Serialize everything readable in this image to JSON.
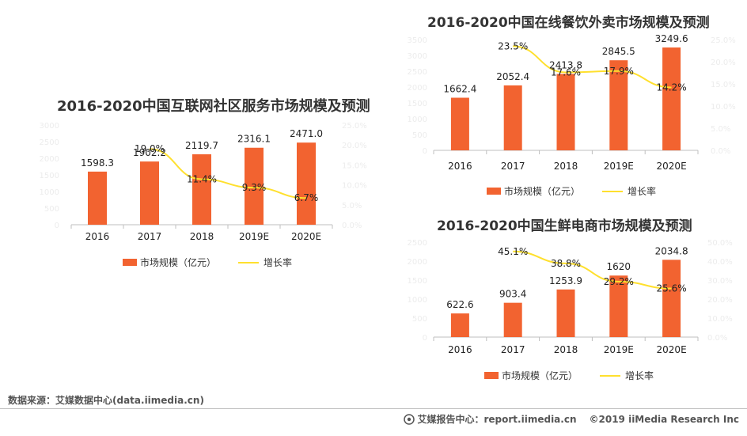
{
  "footer": {
    "source": "数据来源：艾媒数据中心(data.iimedia.cn)",
    "site": "艾媒报告中心：report.iimedia.cn",
    "copyright": "©2019  iiMedia Research  Inc"
  },
  "legend": {
    "bar_label": "市场规模（亿元）",
    "line_label": "增长率"
  },
  "colors": {
    "bar": "#F26330",
    "line": "#FFE02E",
    "axis": "#bfbfbf"
  },
  "chart_data": [
    {
      "id": "community",
      "type": "bar",
      "title": "2016-2020中国互联网社区服务市场规模及预测",
      "categories": [
        "2016",
        "2017",
        "2018",
        "2019E",
        "2020E"
      ],
      "values": [
        1598.3,
        1902.2,
        2119.7,
        2316.1,
        2471.0
      ],
      "value_labels": [
        "1598.3",
        "1902.2",
        "2119.7",
        "2316.1",
        "2471.0"
      ],
      "growth": [
        null,
        19.0,
        11.4,
        9.3,
        6.7
      ],
      "growth_labels": [
        "",
        "19.0%",
        "11.4%",
        "9.3%",
        "6.7%"
      ],
      "ylim": [
        0,
        3000
      ],
      "yticks": [
        0,
        500,
        1000,
        1500,
        2000,
        2500,
        3000
      ],
      "y2lim": [
        0,
        25
      ],
      "y2ticks": [
        "0.0%",
        "5.0%",
        "10.0%",
        "15.0%",
        "20.0%",
        "25.0%"
      ],
      "series": [
        {
          "name": "市场规模（亿元）",
          "type": "bar"
        },
        {
          "name": "增长率",
          "type": "line"
        }
      ]
    },
    {
      "id": "food-delivery",
      "type": "bar",
      "title": "2016-2020中国在线餐饮外卖市场规模及预测",
      "categories": [
        "2016",
        "2017",
        "2018",
        "2019E",
        "2020E"
      ],
      "values": [
        1662.4,
        2052.4,
        2413.8,
        2845.5,
        3249.6
      ],
      "value_labels": [
        "1662.4",
        "2052.4",
        "2413.8",
        "2845.5",
        "3249.6"
      ],
      "growth": [
        null,
        23.5,
        17.6,
        17.9,
        14.2
      ],
      "growth_labels": [
        "",
        "23.5%",
        "17.6%",
        "17.9%",
        "14.2%"
      ],
      "ylim": [
        0,
        3500
      ],
      "yticks": [
        0,
        500,
        1000,
        1500,
        2000,
        2500,
        3000,
        3500
      ],
      "y2lim": [
        0,
        25
      ],
      "y2ticks": [
        "0.0%",
        "5.0%",
        "10.0%",
        "15.0%",
        "20.0%",
        "25.0%"
      ],
      "series": [
        {
          "name": "市场规模（亿元）",
          "type": "bar"
        },
        {
          "name": "增长率",
          "type": "line"
        }
      ]
    },
    {
      "id": "fresh-ecommerce",
      "type": "bar",
      "title": "2016-2020中国生鲜电商市场规模及预测",
      "categories": [
        "2016",
        "2017",
        "2018",
        "2019E",
        "2020E"
      ],
      "values": [
        622.6,
        903.4,
        1253.9,
        1620,
        2034.8
      ],
      "value_labels": [
        "622.6",
        "903.4",
        "1253.9",
        "1620",
        "2034.8"
      ],
      "growth": [
        null,
        45.1,
        38.8,
        29.2,
        25.6
      ],
      "growth_labels": [
        "",
        "45.1%",
        "38.8%",
        "29.2%",
        "25.6%"
      ],
      "ylim": [
        0,
        2500
      ],
      "yticks": [
        0,
        500,
        1000,
        1500,
        2000,
        2500
      ],
      "y2lim": [
        0,
        50
      ],
      "y2ticks": [
        "0.0%",
        "10.0%",
        "20.0%",
        "30.0%",
        "40.0%",
        "50.0%"
      ],
      "series": [
        {
          "name": "市场规模（亿元）",
          "type": "bar"
        },
        {
          "name": "增长率",
          "type": "line"
        }
      ]
    }
  ]
}
